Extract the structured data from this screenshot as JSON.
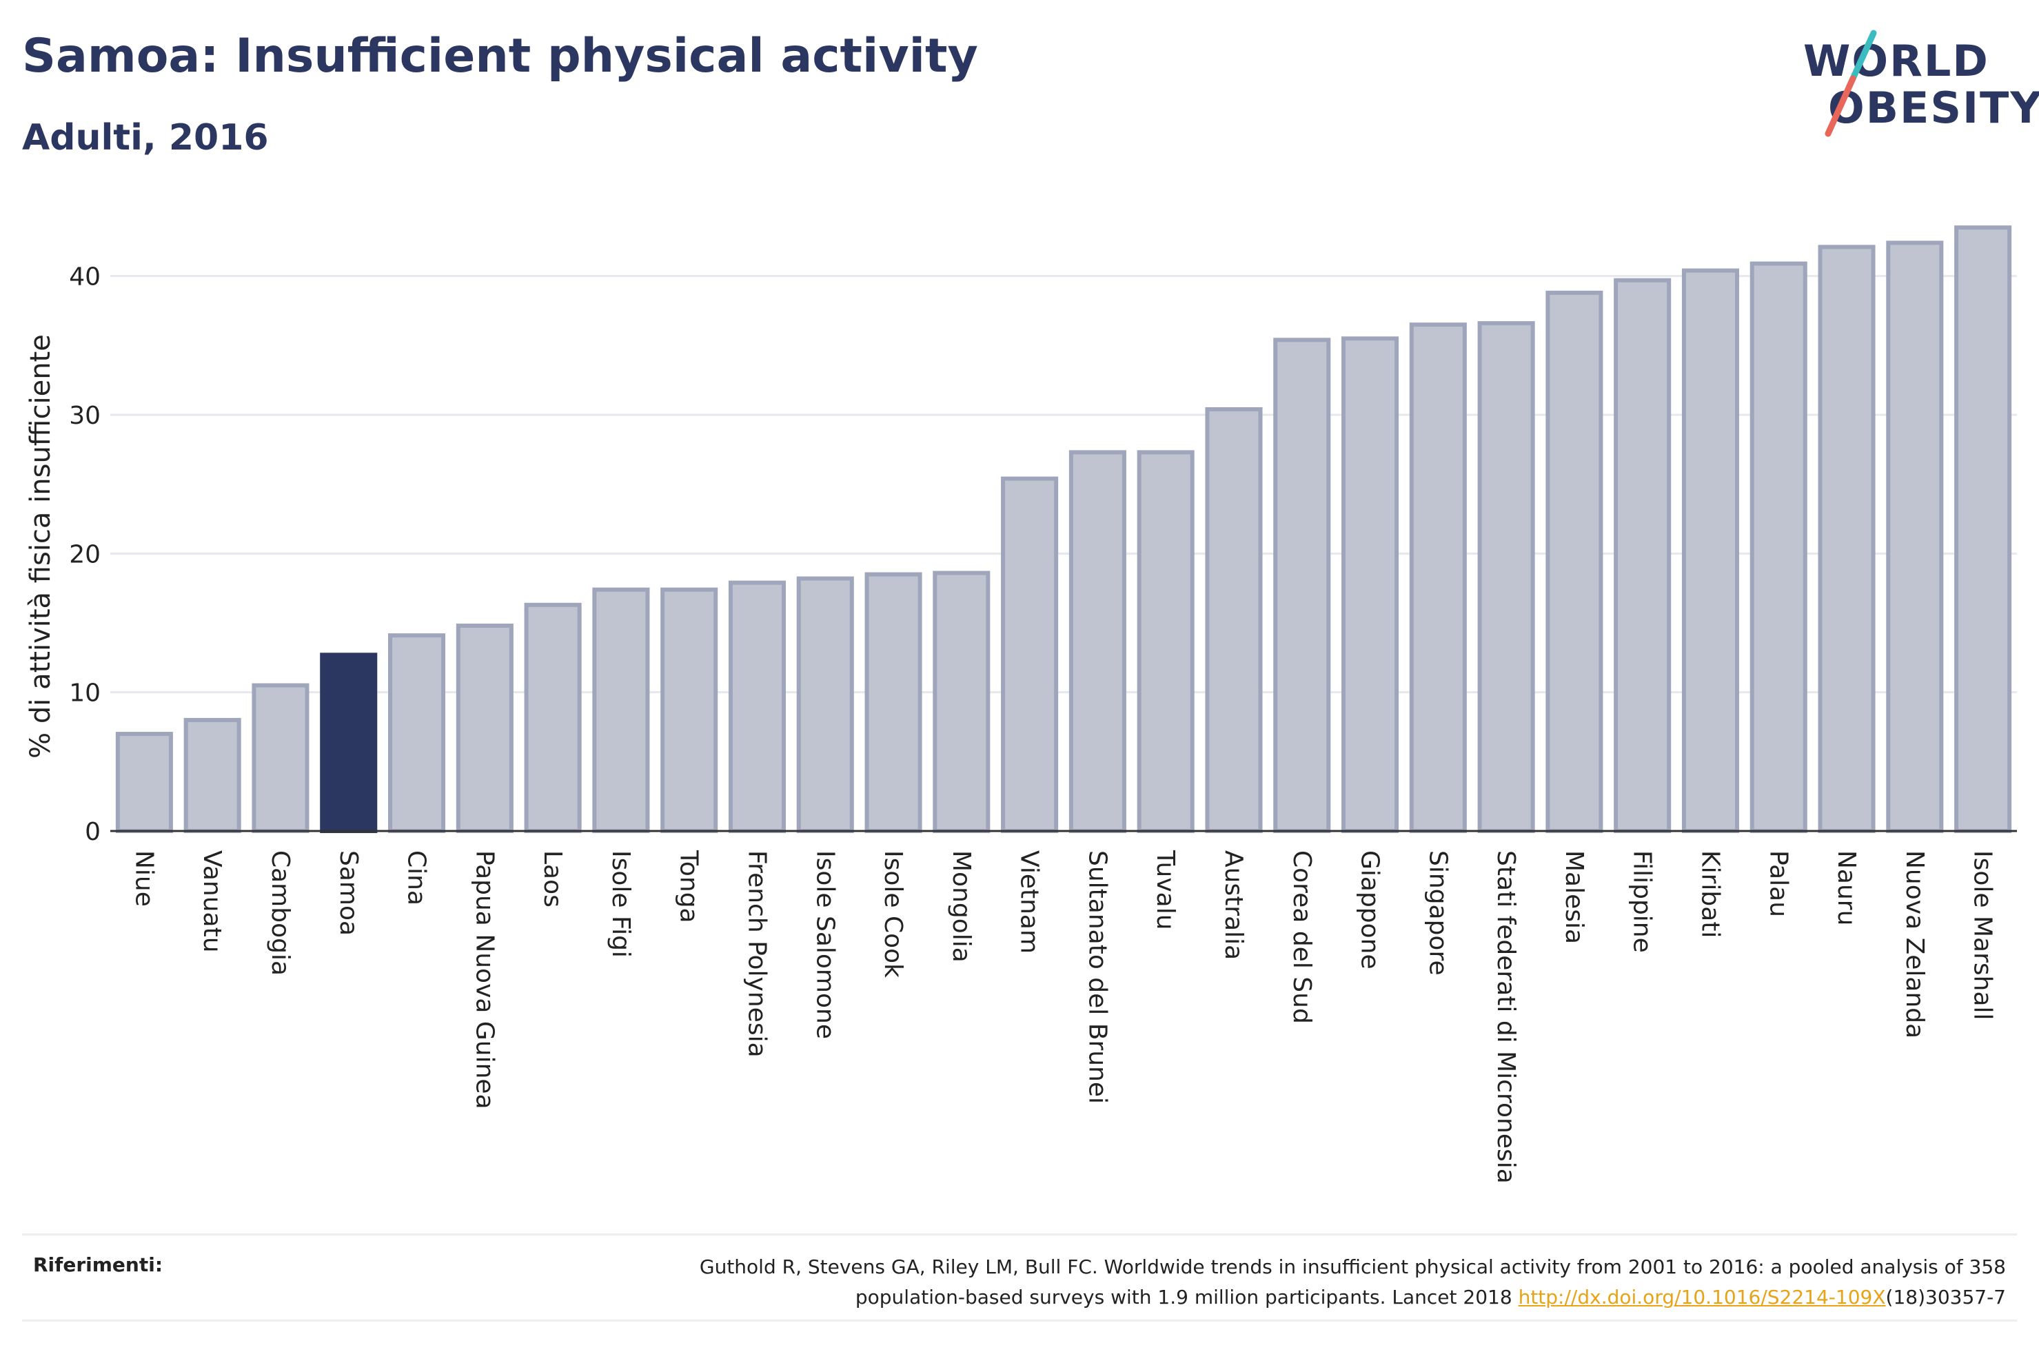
{
  "header": {
    "title": "Samoa: Insufficient physical activity",
    "subtitle": "Adulti, 2016"
  },
  "logo": {
    "line1": "WORLD",
    "line2": "OBESITY",
    "colors": {
      "text": "#2c3761",
      "slash_teal": "#3bbcc0",
      "slash_red": "#e8665a"
    }
  },
  "chart_data": {
    "type": "bar",
    "ylabel": "% di attività fisica insufficiente",
    "ylim": [
      0,
      45
    ],
    "yticks": [
      0,
      10,
      20,
      30,
      40
    ],
    "grid": true,
    "highlight": "Samoa",
    "colors": {
      "bar": "#c0c4d1",
      "bar_border": "#9fa5bb",
      "highlight": "#2c3761"
    },
    "categories": [
      "Niue",
      "Vanuatu",
      "Cambogia",
      "Samoa",
      "Cina",
      "Papua Nuova Guinea",
      "Laos",
      "Isole Figi",
      "Tonga",
      "French Polynesia",
      "Isole Salomone",
      "Isole Cook",
      "Mongolia",
      "Vietnam",
      "Sultanato del Brunei",
      "Tuvalu",
      "Australia",
      "Corea del Sud",
      "Giappone",
      "Singapore",
      "Stati federati di Micronesia",
      "Malesia",
      "Filippine",
      "Kiribati",
      "Palau",
      "Nauru",
      "Nuova Zelanda",
      "Isole Marshall"
    ],
    "values": [
      7.0,
      8.0,
      10.5,
      12.7,
      14.1,
      14.8,
      16.3,
      17.4,
      17.4,
      17.9,
      18.2,
      18.5,
      18.6,
      25.4,
      27.3,
      27.3,
      30.4,
      35.4,
      35.5,
      36.5,
      36.6,
      38.8,
      39.7,
      40.4,
      40.9,
      42.1,
      42.4,
      43.5
    ]
  },
  "references": {
    "label": "Riferimenti:",
    "line1": "Guthold R, Stevens GA, Riley LM, Bull FC. Worldwide trends in insufficient physical activity from 2001 to 2016: a pooled analysis of 358",
    "line2_prefix": "population-based surveys with 1.9 million participants. Lancet 2018 ",
    "link": "http://dx.doi.org/10.1016/S2214-109X",
    "line2_suffix": "(18)30357-7"
  }
}
